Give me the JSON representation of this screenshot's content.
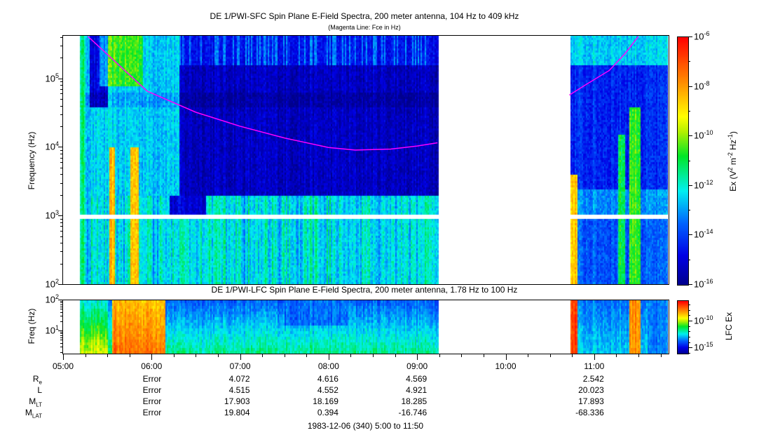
{
  "chart_data": [
    {
      "type": "heatmap",
      "title": "DE 1/PWI-SFC  Spin Plane E-Field Spectra, 200 meter antenna, 104 Hz to 409 kHz",
      "subtitle": "(Magenta Line: Fce in Hz)",
      "ylabel": "Frequency (Hz)",
      "yscale": "log",
      "ylim": [
        100,
        409000
      ],
      "yticks": [
        {
          "v": 100,
          "l": "10",
          "e": "2"
        },
        {
          "v": 1000,
          "l": "10",
          "e": "3"
        },
        {
          "v": 10000,
          "l": "10",
          "e": "4"
        },
        {
          "v": 100000,
          "l": "10",
          "e": "5"
        }
      ],
      "colorbar": {
        "label": "Ex (V",
        "label_parts": [
          "Ex (V",
          "2",
          " m",
          "-2",
          " Hz",
          "-1",
          ")"
        ],
        "log_range": [
          -16,
          -6
        ],
        "ticks": [
          {
            "v": -6,
            "l": "10",
            "e": "-6"
          },
          {
            "v": -8,
            "l": "10",
            "e": "-8"
          },
          {
            "v": -10,
            "l": "10",
            "e": "-10"
          },
          {
            "v": -12,
            "l": "10",
            "e": "-12"
          },
          {
            "v": -14,
            "l": "10",
            "e": "-14"
          },
          {
            "v": -16,
            "l": "10",
            "e": "-16"
          }
        ]
      },
      "data_intervals_hours": [
        [
          5.18,
          9.23
        ],
        [
          10.72,
          11.85
        ]
      ],
      "data_gap_hz": [
        900,
        1050
      ],
      "fce_line": {
        "name": "Fce",
        "color": "#ff00ff",
        "segments": [
          [
            [
              5.28,
              409000
            ],
            [
              5.6,
              170000
            ],
            [
              5.95,
              65000
            ],
            [
              6.5,
              32000
            ],
            [
              7.0,
              20000
            ],
            [
              7.5,
              13500
            ],
            [
              8.0,
              9800
            ],
            [
              8.3,
              9000
            ],
            [
              8.7,
              9300
            ],
            [
              9.0,
              10300
            ],
            [
              9.23,
              11500
            ]
          ],
          [
            [
              10.72,
              57000
            ],
            [
              10.9,
              80000
            ],
            [
              11.17,
              130000
            ],
            [
              11.35,
              230000
            ],
            [
              11.5,
              409000
            ]
          ]
        ]
      }
    },
    {
      "type": "heatmap",
      "title": "DE 1/PWI-LFC  Spin Plane E-Field Spectra, 200 meter antenna, 1.78 Hz to 100 Hz",
      "ylabel": "Freq (Hz)",
      "yscale": "log",
      "ylim": [
        1.78,
        100
      ],
      "yticks": [
        {
          "v": 10,
          "l": "10",
          "e": "1"
        },
        {
          "v": 100,
          "l": "10",
          "e": "2"
        }
      ],
      "colorbar": {
        "label": "LFC Ex",
        "log_range": [
          -16,
          -6.2
        ],
        "ticks": [
          {
            "v": -10,
            "l": "10",
            "e": "-10"
          },
          {
            "v": -15,
            "l": "10",
            "e": "-15"
          }
        ]
      },
      "data_intervals_hours": [
        [
          5.18,
          9.23
        ],
        [
          10.72,
          11.85
        ]
      ]
    }
  ],
  "xaxis": {
    "range_hours": [
      5.0,
      11.8333
    ],
    "ticks": [
      {
        "v": 5,
        "l": "05:00"
      },
      {
        "v": 6,
        "l": "06:00"
      },
      {
        "v": 7,
        "l": "07:00"
      },
      {
        "v": 8,
        "l": "08:00"
      },
      {
        "v": 9,
        "l": "09:00"
      },
      {
        "v": 10,
        "l": "10:00"
      },
      {
        "v": 11,
        "l": "11:00"
      }
    ]
  },
  "ephemeris": {
    "columns_hours": [
      6,
      7,
      8,
      9,
      11
    ],
    "rows": [
      {
        "label": "R",
        "sub": "e",
        "values": [
          "Error",
          "4.072",
          "4.616",
          "4.569",
          "2.542"
        ]
      },
      {
        "label": "L",
        "sub": "",
        "values": [
          "Error",
          "4.515",
          "4.552",
          "4.921",
          "20.023"
        ]
      },
      {
        "label": "M",
        "sub": "LT",
        "values": [
          "Error",
          "17.903",
          "18.169",
          "18.285",
          "17.893"
        ]
      },
      {
        "label": "M",
        "sub": "LAT",
        "values": [
          "Error",
          "19.804",
          "0.394",
          "-16.746",
          "-68.336"
        ]
      }
    ]
  },
  "footer": "1983-12-06 (340) 5:00 to 11:50"
}
